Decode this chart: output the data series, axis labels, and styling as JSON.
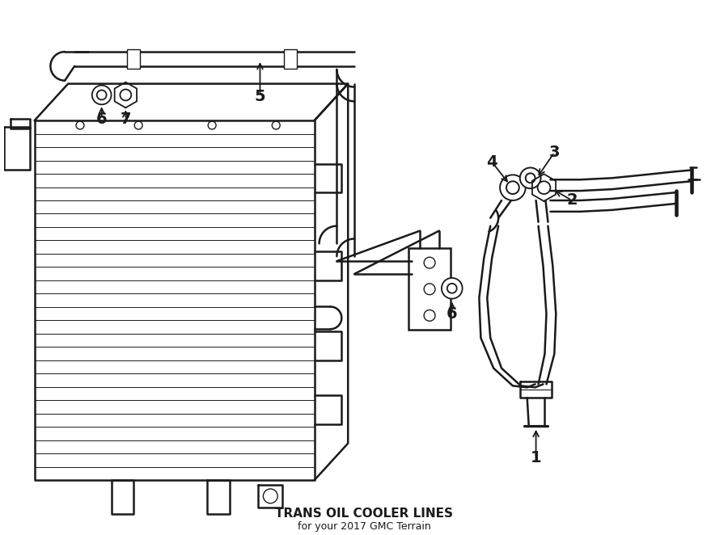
{
  "title": "TRANS OIL COOLER LINES",
  "subtitle": "for your 2017 GMC Terrain",
  "bg_color": "#ffffff",
  "line_color": "#1a1a1a",
  "lw": 1.8,
  "lw_thin": 0.8,
  "lw_thick": 2.5,
  "fs_label": 14,
  "fs_title": 11,
  "fs_sub": 9
}
